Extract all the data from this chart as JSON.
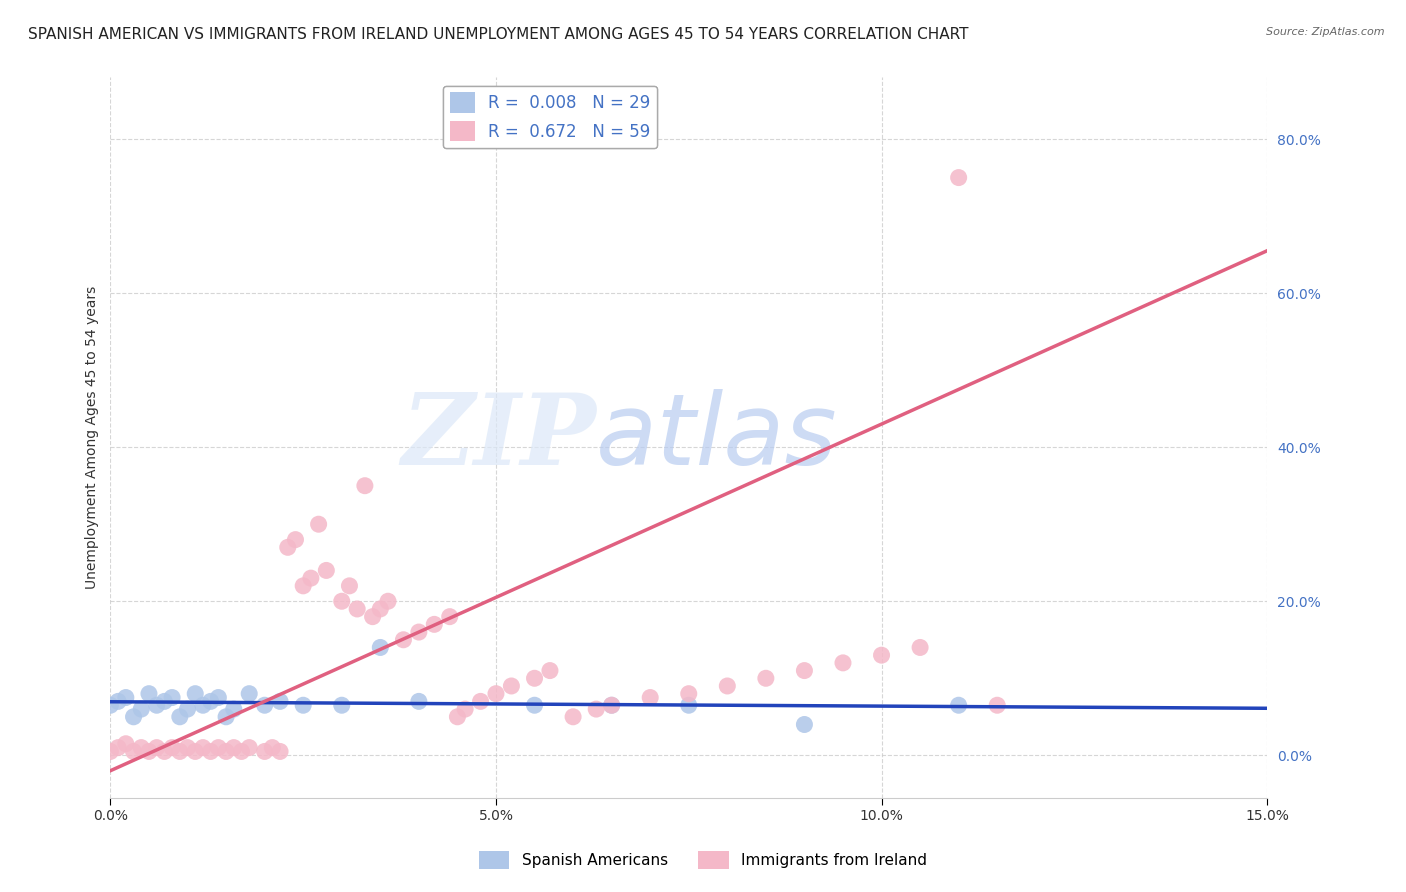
{
  "title": "SPANISH AMERICAN VS IMMIGRANTS FROM IRELAND UNEMPLOYMENT AMONG AGES 45 TO 54 YEARS CORRELATION CHART",
  "source": "Source: ZipAtlas.com",
  "ylabel": "Unemployment Among Ages 45 to 54 years",
  "xlim": [
    0.0,
    0.15
  ],
  "ylim": [
    -0.055,
    0.88
  ],
  "yticks": [
    0.0,
    0.2,
    0.4,
    0.6,
    0.8
  ],
  "xticks": [
    0.0,
    0.05,
    0.1,
    0.15
  ],
  "blue_R": 0.008,
  "blue_N": 29,
  "pink_R": 0.672,
  "pink_N": 59,
  "blue_color": "#aec6e8",
  "pink_color": "#f4b8c8",
  "blue_line_color": "#2244bb",
  "pink_line_color": "#e06080",
  "blue_scatter_x": [
    0.0,
    0.001,
    0.002,
    0.003,
    0.004,
    0.005,
    0.006,
    0.007,
    0.008,
    0.009,
    0.01,
    0.011,
    0.012,
    0.013,
    0.014,
    0.015,
    0.016,
    0.018,
    0.02,
    0.022,
    0.025,
    0.03,
    0.035,
    0.04,
    0.055,
    0.065,
    0.075,
    0.09,
    0.11
  ],
  "blue_scatter_y": [
    0.065,
    0.07,
    0.075,
    0.05,
    0.06,
    0.08,
    0.065,
    0.07,
    0.075,
    0.05,
    0.06,
    0.08,
    0.065,
    0.07,
    0.075,
    0.05,
    0.06,
    0.08,
    0.065,
    0.07,
    0.065,
    0.065,
    0.14,
    0.07,
    0.065,
    0.065,
    0.065,
    0.04,
    0.065
  ],
  "pink_scatter_x": [
    0.0,
    0.001,
    0.002,
    0.003,
    0.004,
    0.005,
    0.006,
    0.007,
    0.008,
    0.009,
    0.01,
    0.011,
    0.012,
    0.013,
    0.014,
    0.015,
    0.016,
    0.017,
    0.018,
    0.02,
    0.021,
    0.022,
    0.023,
    0.024,
    0.025,
    0.026,
    0.027,
    0.028,
    0.03,
    0.031,
    0.032,
    0.033,
    0.034,
    0.035,
    0.036,
    0.038,
    0.04,
    0.042,
    0.044,
    0.045,
    0.046,
    0.048,
    0.05,
    0.052,
    0.055,
    0.057,
    0.06,
    0.063,
    0.065,
    0.07,
    0.075,
    0.08,
    0.085,
    0.09,
    0.095,
    0.1,
    0.105,
    0.11,
    0.115
  ],
  "pink_scatter_y": [
    0.005,
    0.01,
    0.015,
    0.005,
    0.01,
    0.005,
    0.01,
    0.005,
    0.01,
    0.005,
    0.01,
    0.005,
    0.01,
    0.005,
    0.01,
    0.005,
    0.01,
    0.005,
    0.01,
    0.005,
    0.01,
    0.005,
    0.27,
    0.28,
    0.22,
    0.23,
    0.3,
    0.24,
    0.2,
    0.22,
    0.19,
    0.35,
    0.18,
    0.19,
    0.2,
    0.15,
    0.16,
    0.17,
    0.18,
    0.05,
    0.06,
    0.07,
    0.08,
    0.09,
    0.1,
    0.11,
    0.05,
    0.06,
    0.065,
    0.075,
    0.08,
    0.09,
    0.1,
    0.11,
    0.12,
    0.13,
    0.14,
    0.75,
    0.065
  ],
  "watermark_zip": "ZIP",
  "watermark_atlas": "atlas",
  "watermark_color": "#c8d8f0",
  "legend_labels": [
    "Spanish Americans",
    "Immigrants from Ireland"
  ],
  "background_color": "#ffffff",
  "grid_color": "#cccccc",
  "ytick_color": "#4472c4",
  "title_fontsize": 11,
  "axis_label_fontsize": 10,
  "tick_label_fontsize": 10
}
